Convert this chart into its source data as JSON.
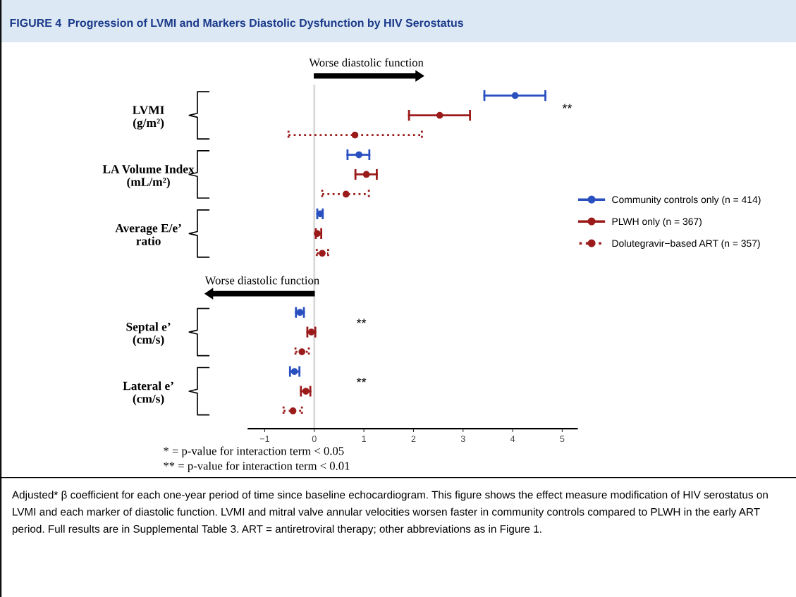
{
  "chart_data": {
    "type": "scatter",
    "orientation": "horizontal",
    "title": "FIGURE 4  Progression of LVMI and Markers Diastolic Dysfunction by HIV Serostatus",
    "categories": [
      null,
      "LVMI\n(g/m²)",
      null,
      null,
      "LA Volume Index\n(mL/m²)",
      null,
      null,
      "Average E/e’\nratio",
      null,
      null,
      null,
      null,
      "Septal e’\n(cm/s)",
      null,
      null,
      "Lateral e’\n(cm/s)",
      null
    ],
    "series": [
      {
        "name": "Community controls only (n = 414)",
        "color": "#2a50c0",
        "line_style": "solid",
        "values": [
          4.05,
          null,
          null,
          0.9,
          null,
          null,
          0.12,
          null,
          null,
          null,
          null,
          -0.29,
          null,
          null,
          -0.4,
          null,
          null
        ],
        "errors": [
          [
            3.43,
            4.66
          ],
          null,
          null,
          [
            0.67,
            1.11
          ],
          null,
          null,
          [
            0.06,
            0.17
          ],
          null,
          null,
          null,
          null,
          [
            -0.37,
            -0.21
          ],
          null,
          null,
          [
            -0.49,
            -0.3
          ],
          null,
          null
        ]
      },
      {
        "name": "PLWH only (n = 367)",
        "color": "#9b1b1b",
        "line_style": "solid",
        "values": [
          null,
          2.53,
          null,
          null,
          1.05,
          null,
          null,
          0.06,
          null,
          null,
          null,
          null,
          -0.06,
          null,
          null,
          -0.17,
          null
        ],
        "errors": [
          null,
          [
            1.91,
            3.14
          ],
          null,
          null,
          [
            0.83,
            1.26
          ],
          null,
          null,
          [
            0.03,
            0.14
          ],
          null,
          null,
          null,
          null,
          [
            -0.14,
            0.02
          ],
          null,
          null,
          [
            -0.27,
            -0.08
          ],
          null
        ]
      },
      {
        "name": "Dolutegravir−based ART (n = 357)",
        "color": "#9b1b1b",
        "line_style": "dotted",
        "values": [
          null,
          null,
          0.82,
          null,
          null,
          0.64,
          null,
          null,
          0.16,
          null,
          null,
          null,
          null,
          -0.25,
          null,
          null,
          -0.43
        ],
        "errors": [
          null,
          null,
          [
            -0.52,
            2.17
          ],
          null,
          null,
          [
            0.16,
            1.1
          ],
          null,
          null,
          [
            0.05,
            0.28
          ],
          null,
          null,
          null,
          null,
          [
            -0.38,
            -0.11
          ],
          null,
          null,
          [
            -0.62,
            -0.25
          ]
        ]
      }
    ],
    "xlim": [
      -1.33,
      5.3
    ],
    "xticks": [
      {
        "value": -1,
        "label": "−1"
      },
      0,
      1,
      2,
      3,
      4,
      5
    ],
    "marker": "circle",
    "legend": "right",
    "grid": false,
    "ref_lines": [
      {
        "axis": "x",
        "value": 0,
        "color": "#d9d9d9"
      }
    ],
    "annotations": [
      "Worse diastolic function",
      "Worse diastolic function",
      "**",
      "**",
      "**",
      "* = p-value for interaction term < 0.05",
      "** = p-value for interaction term < 0.01",
      "Adjusted* β coefficient for each one-year period of time since baseline echocardiogram. This figure shows the effect measure modification of HIV serostatus on LVMI and each marker of diastolic function. LVMI and mitral valve annular velocities worsen faster in community controls compared to PLWH in the early ART period. Full results are in Supplemental Table 3. ART = antiretroviral therapy; other abbreviations as in Figure 1."
    ]
  }
}
